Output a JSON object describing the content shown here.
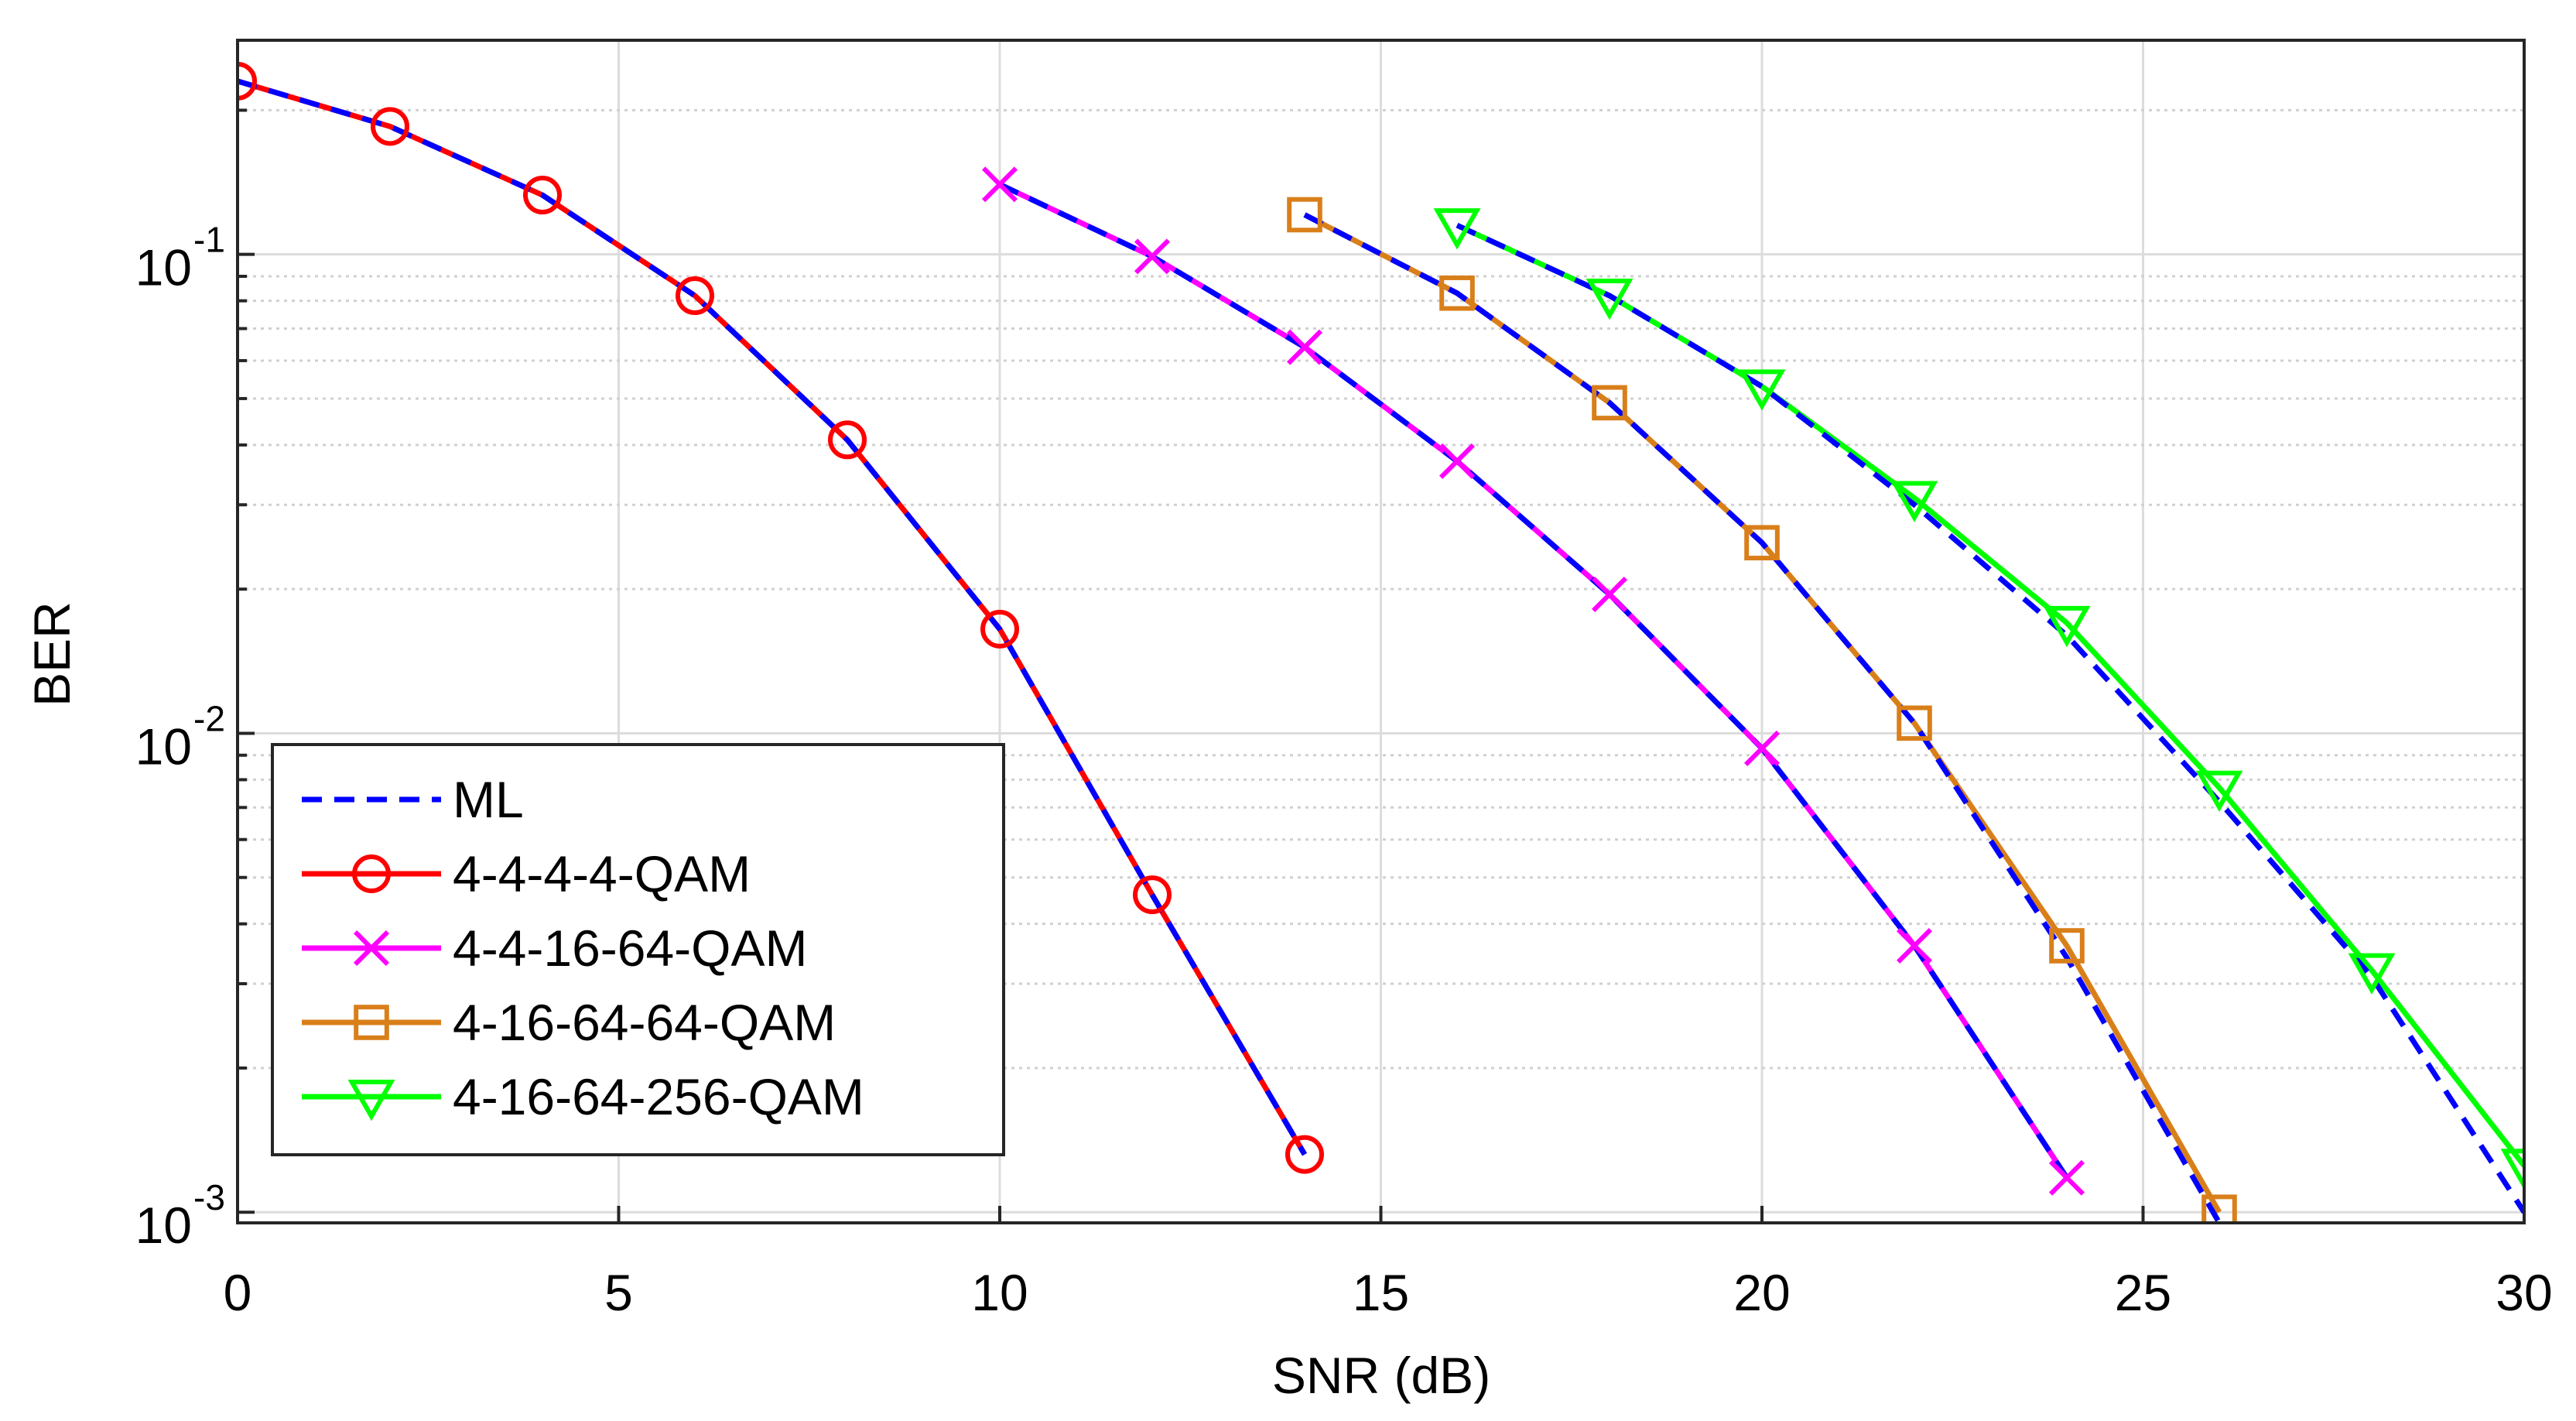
{
  "chart_data": {
    "type": "line",
    "title": "",
    "xlabel": "SNR (dB)",
    "ylabel": "BER",
    "xlim": [
      0,
      30
    ],
    "ylim": [
      0.00095,
      0.28
    ],
    "yscale": "log",
    "grid": true,
    "x_ticks": [
      {
        "value": 0,
        "label": "0"
      },
      {
        "value": 5,
        "label": "5"
      },
      {
        "value": 10,
        "label": "10"
      },
      {
        "value": 15,
        "label": "15"
      },
      {
        "value": 20,
        "label": "20"
      },
      {
        "value": 25,
        "label": "25"
      },
      {
        "value": 30,
        "label": "30"
      }
    ],
    "y_ticks": [
      {
        "value": 0.1,
        "base": "10",
        "exp": "-1"
      },
      {
        "value": 0.01,
        "base": "10",
        "exp": "-2"
      },
      {
        "value": 0.001,
        "base": "10",
        "exp": "-3"
      }
    ],
    "legend_position": "bottom-left",
    "series": [
      {
        "name": "4-4-4-4-QAM",
        "color": "#ff0000",
        "marker": "circle",
        "x": [
          0,
          2,
          4,
          6,
          8,
          10,
          12,
          14
        ],
        "y": [
          0.23,
          0.185,
          0.133,
          0.082,
          0.041,
          0.0165,
          0.0046,
          0.00132
        ]
      },
      {
        "name": "4-4-16-64-QAM",
        "color": "#ff00ff",
        "marker": "x",
        "x": [
          10,
          12,
          14,
          16,
          18,
          20,
          22,
          24
        ],
        "y": [
          0.14,
          0.099,
          0.064,
          0.037,
          0.0195,
          0.0093,
          0.0036,
          0.00118
        ]
      },
      {
        "name": "4-16-64-64-QAM",
        "color": "#d97f1a",
        "marker": "square",
        "x": [
          14,
          16,
          18,
          20,
          22,
          24,
          26
        ],
        "y": [
          0.121,
          0.083,
          0.049,
          0.025,
          0.0105,
          0.0036,
          0.001
        ]
      },
      {
        "name": "4-16-64-256-QAM",
        "color": "#00ff00",
        "marker": "triangle-down",
        "x": [
          16,
          18,
          20,
          22,
          24,
          26,
          28,
          30
        ],
        "y": [
          0.115,
          0.082,
          0.053,
          0.031,
          0.017,
          0.0077,
          0.0032,
          0.00125
        ]
      }
    ],
    "ml_reference": {
      "name": "ML",
      "color": "#0000ff",
      "style": "dashed",
      "curves": [
        {
          "x": [
            0,
            2,
            4,
            6,
            8,
            10,
            12,
            14
          ],
          "y": [
            0.23,
            0.185,
            0.133,
            0.082,
            0.041,
            0.0165,
            0.0046,
            0.00132
          ]
        },
        {
          "x": [
            10,
            12,
            14,
            16,
            18,
            20,
            22,
            24
          ],
          "y": [
            0.14,
            0.099,
            0.064,
            0.037,
            0.0195,
            0.0093,
            0.0036,
            0.00118
          ]
        },
        {
          "x": [
            14,
            16,
            18,
            20,
            22,
            24,
            26
          ],
          "y": [
            0.121,
            0.083,
            0.049,
            0.025,
            0.0105,
            0.0034,
            0.00095
          ]
        },
        {
          "x": [
            16,
            18,
            20,
            22,
            24,
            26,
            28,
            30
          ],
          "y": [
            0.115,
            0.082,
            0.053,
            0.03,
            0.016,
            0.0072,
            0.0031,
            0.001
          ]
        }
      ]
    }
  }
}
